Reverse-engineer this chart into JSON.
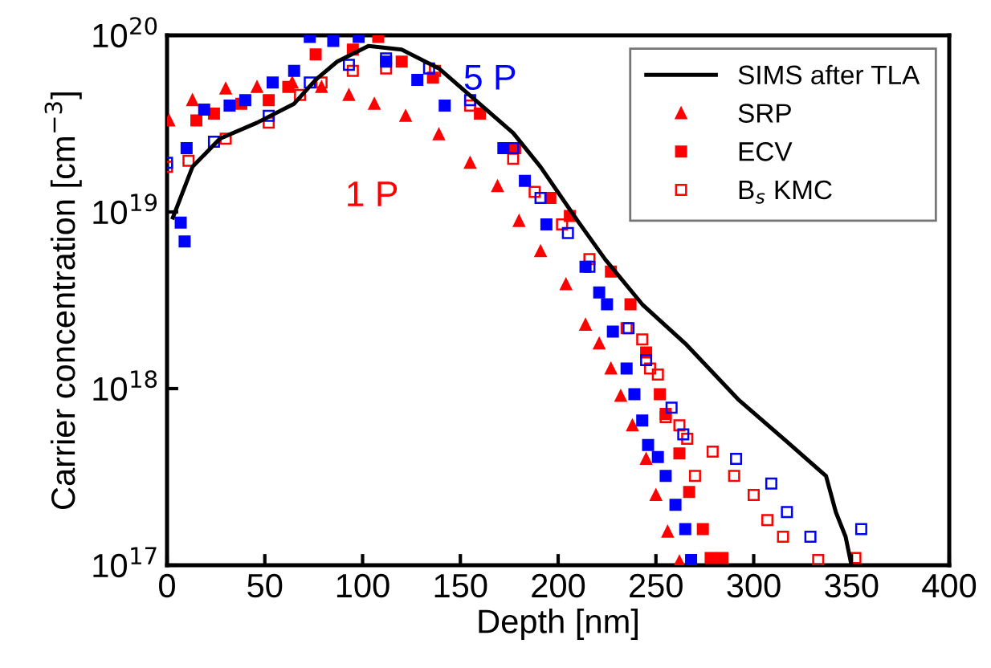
{
  "chart_data": {
    "type": "scatter",
    "xlabel": "Depth [nm]",
    "ylabel": "Carrier concentration [cm$^{−3}$]",
    "xlim": [
      0,
      400
    ],
    "xticks": [
      0,
      50,
      100,
      150,
      200,
      250,
      300,
      350,
      400
    ],
    "ylim": [
      1e+17,
      1e+20
    ],
    "log": "y",
    "yticks": [
      {
        "value": 1e+17,
        "label": "10$^{17}$"
      },
      {
        "value": 1e+18,
        "label": "10$^{18}$"
      },
      {
        "value": 1e+19,
        "label": "10$^{19}$"
      },
      {
        "value": 1e+20,
        "label": "10$^{20}$"
      }
    ],
    "legend": "top right",
    "grid": false,
    "annotations": [
      "1 P",
      "5 P"
    ],
    "series": [
      {
        "name": "SIMS after TLA",
        "type": "line",
        "color": "#000000",
        "marker": "none",
        "x": [
          3,
          13,
          27,
          46,
          65,
          76,
          87,
          103,
          120,
          139,
          177,
          191,
          210,
          224,
          243,
          265,
          292,
          317,
          337,
          342,
          347,
          350
        ],
        "values": [
          9.3e+18,
          1.8e+19,
          2.6e+19,
          3.2e+19,
          4.1e+19,
          5.6e+19,
          7.1e+19,
          8.7e+19,
          8.3e+19,
          6.5e+19,
          2.8e+19,
          1.8e+19,
          8.9e+18,
          5.4e+18,
          3e+18,
          1.8e+18,
          8.7e+17,
          5e+17,
          3.2e+17,
          2e+17,
          1.45e+17,
          1e+17
        ]
      },
      {
        "name": "SRP",
        "color": "#ff0000",
        "marker": "triangle",
        "x": [
          1,
          13,
          30,
          46,
          64,
          79,
          93,
          106,
          122,
          139,
          155,
          169,
          180,
          191,
          204,
          214,
          221,
          227,
          232,
          238,
          245,
          250,
          256,
          262
        ],
        "values": [
          3.3e+19,
          4.3e+19,
          5e+19,
          5.1e+19,
          5.4e+19,
          5.1e+19,
          4.6e+19,
          4.1e+19,
          3.5e+19,
          2.75e+19,
          1.9e+19,
          1.4e+19,
          8.9e+18,
          6e+18,
          3.9e+18,
          2.3e+18,
          1.8e+18,
          1.3e+18,
          9.1e+17,
          6.2e+17,
          4e+17,
          2.5e+17,
          1.55e+17,
          1.05e+17
        ]
      },
      {
        "name": "ECV",
        "color": "#ff0000",
        "marker": "square",
        "x": [
          15,
          24,
          38,
          52,
          62,
          76,
          95,
          108,
          120,
          136,
          160,
          178,
          196,
          206,
          227,
          237,
          245,
          252,
          255,
          262,
          267,
          274,
          278,
          284
        ],
        "values": [
          3.3e+19,
          3.6e+19,
          4.1e+19,
          4.3e+19,
          5.1e+19,
          7.8e+19,
          8.3e+19,
          9.8e+19,
          7.1e+19,
          5.75e+19,
          3.6e+19,
          2.3e+19,
          1.2e+19,
          9.5e+18,
          4.6e+18,
          3e+18,
          1.6e+18,
          9.3e+17,
          7.2e+17,
          4.3e+17,
          2.6e+17,
          1.6e+17,
          1.1e+17,
          1.1e+17
        ]
      },
      {
        "name": "B$_{s}$ KMC",
        "color": "#ff0000",
        "marker": "square open",
        "x": [
          0,
          11,
          30,
          52,
          68,
          79,
          95,
          112,
          137,
          155,
          177,
          188,
          202,
          216,
          235,
          243,
          247,
          251,
          255,
          262,
          266,
          270,
          279,
          290,
          300,
          307,
          315,
          333,
          352
        ],
        "values": [
          1.8e+19,
          1.95e+19,
          2.6e+19,
          3.2e+19,
          4.6e+19,
          5.4e+19,
          6.3e+19,
          6.5e+19,
          6.3e+19,
          4e+19,
          2e+19,
          1.3e+19,
          8.5e+18,
          5.4e+18,
          2.2e+18,
          1.9e+18,
          1.3e+18,
          1.2e+18,
          6.9e+17,
          6.2e+17,
          5.2e+17,
          3.2e+17,
          4.4e+17,
          3.2e+17,
          2.5e+17,
          1.8e+17,
          1.45e+17,
          1.07e+17,
          1.1e+17
        ]
      },
      {
        "color": "#0000ff",
        "marker": "square",
        "x": [
          7,
          9,
          10,
          19,
          32,
          40,
          54,
          65,
          73,
          85,
          98,
          112,
          128,
          142,
          172,
          183,
          194,
          214,
          221,
          225,
          228,
          235,
          239,
          243,
          246,
          251,
          255,
          260,
          265,
          268
        ],
        "values": [
          8.7e+18,
          6.8e+18,
          2.3e+19,
          3.8e+19,
          4e+19,
          4.3e+19,
          5.4e+19,
          6.3e+19,
          9.8e+19,
          9.3e+19,
          9.8e+19,
          7.1e+19,
          5.6e+19,
          4e+19,
          2.3e+19,
          1.5e+19,
          8.5e+18,
          4.9e+18,
          3.5e+18,
          3e+18,
          2.1e+18,
          1.3e+18,
          9.3e+17,
          6.6e+17,
          4.8e+17,
          4.1e+17,
          3.2e+17,
          2.2e+17,
          1.6e+17,
          1.07e+17
        ]
      },
      {
        "color": "#0000ff",
        "marker": "square open",
        "x": [
          0,
          24,
          52,
          73,
          93,
          112,
          134,
          155,
          177,
          191,
          205,
          216,
          236,
          245,
          258,
          264,
          291,
          309,
          317,
          329,
          355
        ],
        "values": [
          1.9e+19,
          2.5e+19,
          3.5e+19,
          5.4e+19,
          6.8e+19,
          7.4e+19,
          6.5e+19,
          4.3e+19,
          2.3e+19,
          1.2e+19,
          7.6e+18,
          4.9e+18,
          2.2e+18,
          1.45e+18,
          7.8e+17,
          5.5e+17,
          4e+17,
          2.9e+17,
          2e+17,
          1.45e+17,
          1.6e+17
        ]
      }
    ]
  }
}
